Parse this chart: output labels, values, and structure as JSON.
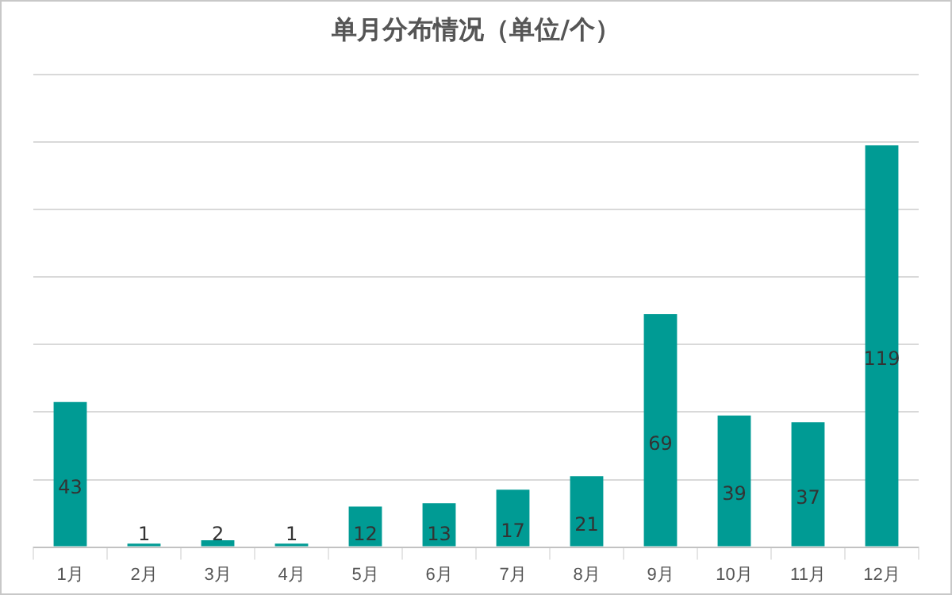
{
  "chart_data": {
    "type": "bar",
    "title": "单月分布情况（单位/个）",
    "categories": [
      "1月",
      "2月",
      "3月",
      "4月",
      "5月",
      "6月",
      "7月",
      "8月",
      "9月",
      "10月",
      "11月",
      "12月"
    ],
    "values": [
      43,
      1,
      2,
      1,
      12,
      13,
      17,
      21,
      69,
      39,
      37,
      119
    ],
    "color": "#009b94",
    "ylim": [
      0,
      140
    ],
    "yticks": [
      {
        "value": 0,
        "label": null
      },
      {
        "value": 20,
        "label": null
      },
      {
        "value": 40,
        "label": null
      },
      {
        "value": 60,
        "label": null
      },
      {
        "value": 80,
        "label": null
      },
      {
        "value": 100,
        "label": null
      },
      {
        "value": 120,
        "label": null
      },
      {
        "value": 140,
        "label": null
      }
    ],
    "grid": true,
    "data_labels": true,
    "tick_labels": "x"
  }
}
